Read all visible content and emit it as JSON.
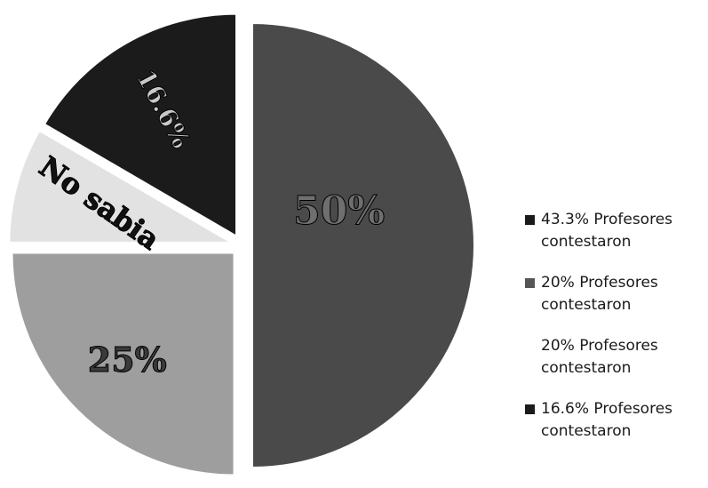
{
  "chart_data": {
    "type": "pie",
    "slices": [
      {
        "label": "50%",
        "value": 50,
        "color": "#4a4a4a",
        "text_color": "#6f6f6f"
      },
      {
        "label": "25%",
        "value": 25,
        "color": "#9e9e9e",
        "text_color": "#3a3a3a"
      },
      {
        "label": "No sabia",
        "value": 8.4,
        "color": "#e2e2e2",
        "text_color": "#111111"
      },
      {
        "label": "16.6%",
        "value": 16.6,
        "color": "#1b1b1b",
        "text_color": "#c8c8c8"
      }
    ],
    "legend": {
      "placement": "right",
      "entries": [
        {
          "text": "43.3% Profesores contestaron",
          "color": "#1b1b1b"
        },
        {
          "text": "20% Profesores contestaron",
          "color": "#555555"
        },
        {
          "text": "20% Profesores contestaron",
          "color": ""
        },
        {
          "text": "16.6% Profesores contestaron",
          "color": "#1b1b1b"
        }
      ]
    }
  }
}
